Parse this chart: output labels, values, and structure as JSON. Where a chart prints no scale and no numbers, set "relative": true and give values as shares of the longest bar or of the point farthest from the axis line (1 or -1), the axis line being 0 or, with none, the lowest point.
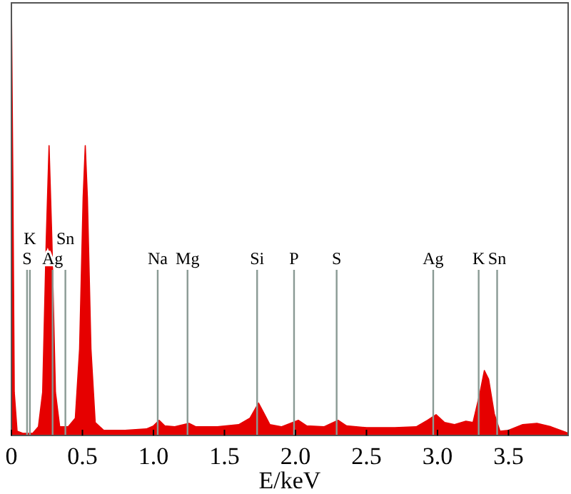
{
  "chart_data": {
    "type": "area",
    "relative": true,
    "xlabel": "E/keV",
    "color": "#e60000",
    "x": [
      0,
      0.01,
      0.02,
      0.04,
      0.08,
      0.15,
      0.19,
      0.22,
      0.245,
      0.265,
      0.285,
      0.31,
      0.34,
      0.4,
      0.45,
      0.48,
      0.505,
      0.52,
      0.535,
      0.56,
      0.59,
      0.65,
      0.8,
      0.95,
      1.0,
      1.04,
      1.08,
      1.15,
      1.25,
      1.3,
      1.45,
      1.6,
      1.68,
      1.74,
      1.78,
      1.82,
      1.9,
      2.02,
      2.08,
      2.2,
      2.3,
      2.36,
      2.5,
      2.7,
      2.85,
      2.93,
      2.99,
      3.05,
      3.12,
      3.2,
      3.25,
      3.3,
      3.33,
      3.36,
      3.4,
      3.44,
      3.5,
      3.6,
      3.7,
      3.8,
      3.9,
      3.92
    ],
    "values": [
      1,
      0.6,
      0.1,
      0.01,
      0.005,
      0.005,
      0.02,
      0.1,
      0.45,
      0.67,
      0.45,
      0.1,
      0.02,
      0.02,
      0.04,
      0.2,
      0.55,
      0.67,
      0.55,
      0.2,
      0.03,
      0.012,
      0.012,
      0.015,
      0.022,
      0.035,
      0.022,
      0.02,
      0.028,
      0.02,
      0.02,
      0.025,
      0.04,
      0.075,
      0.05,
      0.025,
      0.02,
      0.035,
      0.022,
      0.02,
      0.035,
      0.022,
      0.018,
      0.018,
      0.02,
      0.035,
      0.048,
      0.03,
      0.025,
      0.033,
      0.03,
      0.1,
      0.15,
      0.13,
      0.05,
      0.01,
      0.012,
      0.025,
      0.028,
      0.02,
      0.008,
      0.005
    ],
    "xlim": [
      0,
      3.92
    ],
    "xticks": [
      0,
      0.5,
      {
        "value": 1,
        "label": "1.0"
      },
      1.5,
      {
        "value": 2,
        "label": "2.0"
      },
      2.5,
      {
        "value": 3,
        "label": "3.0"
      },
      3.5
    ],
    "ref_lines": [
      {
        "axis": "x",
        "value": 0.11,
        "label": "S",
        "color": "#8a9a94"
      },
      {
        "axis": "x",
        "value": 0.13,
        "label": "K",
        "color": "#8a9a94"
      },
      {
        "axis": "x",
        "value": 0.29,
        "label": "Ag",
        "color": "#8a9a94"
      },
      {
        "axis": "x",
        "value": 0.38,
        "label": "Sn",
        "color": "#8a9a94"
      },
      {
        "axis": "x",
        "value": 1.03,
        "label": "Na",
        "color": "#8a9a94"
      },
      {
        "axis": "x",
        "value": 1.24,
        "label": "Mg",
        "color": "#8a9a94"
      },
      {
        "axis": "x",
        "value": 1.73,
        "label": "Si",
        "color": "#8a9a94"
      },
      {
        "axis": "x",
        "value": 1.99,
        "label": "P",
        "color": "#8a9a94"
      },
      {
        "axis": "x",
        "value": 2.29,
        "label": "S",
        "color": "#8a9a94"
      },
      {
        "axis": "x",
        "value": 2.97,
        "label": "Ag",
        "color": "#8a9a94"
      },
      {
        "axis": "x",
        "value": 3.29,
        "label": "K",
        "color": "#8a9a94"
      },
      {
        "axis": "x",
        "value": 3.42,
        "label": "Sn",
        "color": "#8a9a94"
      }
    ]
  }
}
